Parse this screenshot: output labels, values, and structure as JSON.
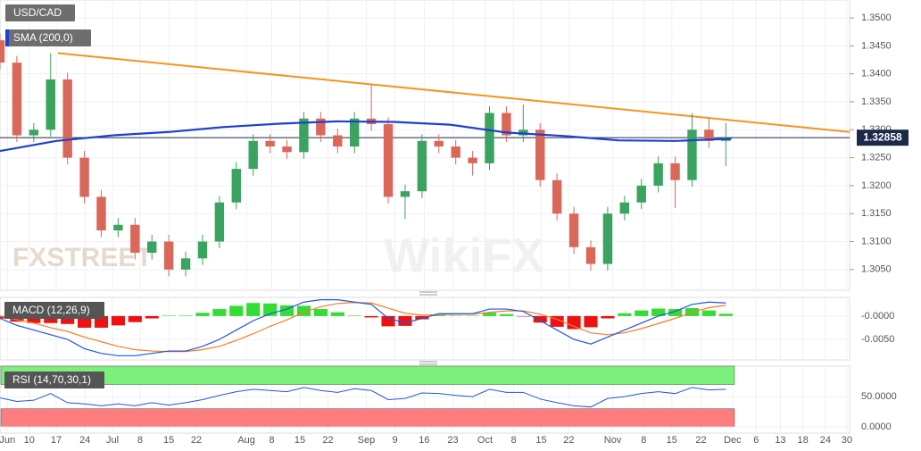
{
  "chart_data": [
    {
      "type": "candlestick",
      "title": "USD/CAD",
      "watermarks": [
        "FXSTREET",
        "WikiFX"
      ],
      "xlim": [
        0,
        151
      ],
      "ylim": [
        1.3013,
        1.3532
      ],
      "yticks": [
        {
          "value": 1.35,
          "label": "1.3500"
        },
        {
          "value": 1.345,
          "label": "1.3450"
        },
        {
          "value": 1.34,
          "label": "1.3400"
        },
        {
          "value": 1.335,
          "label": "1.3350"
        },
        {
          "value": 1.33,
          "label": "1.3300"
        },
        {
          "value": 1.325,
          "label": "1.3250"
        },
        {
          "value": 1.32,
          "label": "1.3200"
        },
        {
          "value": 1.315,
          "label": "1.3150"
        },
        {
          "value": 1.31,
          "label": "1.3100"
        },
        {
          "value": 1.305,
          "label": "1.3050"
        }
      ],
      "x": [
        0,
        3,
        6,
        9,
        12,
        15,
        18,
        21,
        24,
        27,
        30,
        33,
        36,
        39,
        42,
        45,
        48,
        51,
        54,
        57,
        60,
        63,
        66,
        69,
        72,
        75,
        78,
        81,
        84,
        87,
        90,
        93,
        96,
        99,
        102,
        105,
        108,
        111,
        114,
        117,
        120,
        123,
        126,
        129
      ],
      "open": [
        1.346,
        1.342,
        1.329,
        1.33,
        1.339,
        1.325,
        1.318,
        1.312,
        1.313,
        1.308,
        1.31,
        1.305,
        1.307,
        1.31,
        1.317,
        1.323,
        1.328,
        1.327,
        1.326,
        1.332,
        1.329,
        1.327,
        1.332,
        1.331,
        1.318,
        1.319,
        1.328,
        1.327,
        1.325,
        1.324,
        1.333,
        1.329,
        1.33,
        1.321,
        1.315,
        1.309,
        1.306,
        1.315,
        1.317,
        1.32,
        1.324,
        1.321,
        1.33,
        1.328
      ],
      "high": [
        1.3472,
        1.3432,
        1.3312,
        1.3437,
        1.3402,
        1.3262,
        1.3192,
        1.3142,
        1.3142,
        1.3112,
        1.3112,
        1.3082,
        1.3112,
        1.3182,
        1.3242,
        1.3292,
        1.3292,
        1.3282,
        1.3332,
        1.3332,
        1.3302,
        1.3332,
        1.3382,
        1.3322,
        1.3202,
        1.3292,
        1.3292,
        1.3282,
        1.3262,
        1.3342,
        1.3342,
        1.3345,
        1.3312,
        1.3222,
        1.3162,
        1.3102,
        1.3162,
        1.3182,
        1.3212,
        1.3252,
        1.3252,
        1.333,
        1.332,
        1.3312
      ],
      "low": [
        1.3408,
        1.3278,
        1.3278,
        1.3288,
        1.3238,
        1.3168,
        1.3108,
        1.3108,
        1.3068,
        1.3068,
        1.3038,
        1.3038,
        1.3058,
        1.3088,
        1.3158,
        1.3218,
        1.3258,
        1.3248,
        1.3248,
        1.3278,
        1.3258,
        1.3258,
        1.3298,
        1.3168,
        1.314,
        1.3178,
        1.3258,
        1.3238,
        1.3218,
        1.3228,
        1.3278,
        1.3278,
        1.3198,
        1.3138,
        1.3078,
        1.3048,
        1.3048,
        1.3138,
        1.3158,
        1.3188,
        1.316,
        1.3198,
        1.3268,
        1.3235
      ],
      "close": [
        1.342,
        1.329,
        1.33,
        1.339,
        1.325,
        1.318,
        1.312,
        1.313,
        1.308,
        1.31,
        1.305,
        1.307,
        1.31,
        1.317,
        1.323,
        1.328,
        1.327,
        1.326,
        1.332,
        1.329,
        1.327,
        1.332,
        1.331,
        1.318,
        1.319,
        1.328,
        1.327,
        1.325,
        1.324,
        1.333,
        1.329,
        1.33,
        1.321,
        1.315,
        1.309,
        1.306,
        1.315,
        1.317,
        1.32,
        1.324,
        1.321,
        1.33,
        1.328,
        1.3286
      ],
      "up_color": "#3aa35f",
      "down_color": "#d9685a",
      "sma": {
        "name": "SMA (200,0)",
        "color": "#1f3fcf",
        "x": [
          0,
          10,
          20,
          30,
          40,
          50,
          60,
          70,
          80,
          90,
          100,
          110,
          120,
          130
        ],
        "values": [
          1.3262,
          1.328,
          1.329,
          1.3296,
          1.3305,
          1.3311,
          1.3315,
          1.3314,
          1.3309,
          1.3295,
          1.3289,
          1.3281,
          1.328,
          1.3284
        ]
      },
      "trendline": {
        "color": "#f7931e",
        "x": [
          10.3,
          151
        ],
        "values": [
          1.3437,
          1.3296
        ]
      },
      "last_price": {
        "value": 1.32858,
        "label": "1.32858"
      }
    },
    {
      "type": "macd",
      "title": "MACD (12,26,9)",
      "xlim": [
        0,
        151
      ],
      "ylim": [
        -0.0094,
        0.004
      ],
      "yticks": [
        {
          "value": 0,
          "label": "-0.0000"
        },
        {
          "value": -0.005,
          "label": "-0.0050"
        }
      ],
      "x": [
        0,
        3,
        6,
        9,
        12,
        15,
        18,
        21,
        24,
        27,
        30,
        33,
        36,
        39,
        42,
        45,
        48,
        51,
        54,
        57,
        60,
        63,
        66,
        69,
        72,
        75,
        78,
        81,
        84,
        87,
        90,
        93,
        96,
        99,
        102,
        105,
        108,
        111,
        114,
        117,
        120,
        123,
        126,
        129
      ],
      "macd": {
        "color": "#2255dd",
        "values": [
          -0.0005,
          -0.002,
          -0.003,
          -0.004,
          -0.005,
          -0.007,
          -0.008,
          -0.0085,
          -0.0085,
          -0.008,
          -0.0075,
          -0.0075,
          -0.0065,
          -0.005,
          -0.003,
          -0.001,
          0.0005,
          0.0015,
          0.003,
          0.0035,
          0.0035,
          0.003,
          0.0025,
          -0.0005,
          -0.0015,
          -0.0005,
          0.0005,
          0.0005,
          0.0005,
          0.0015,
          0.0015,
          0.001,
          -0.001,
          -0.003,
          -0.005,
          -0.006,
          -0.0045,
          -0.003,
          -0.0015,
          0,
          0.001,
          0.0025,
          0.003,
          0.0028
        ]
      },
      "signal": {
        "color": "#f07f2a",
        "values": [
          0,
          -0.0008,
          -0.0015,
          -0.0025,
          -0.0033,
          -0.0045,
          -0.0055,
          -0.0065,
          -0.0072,
          -0.0075,
          -0.0076,
          -0.0076,
          -0.0072,
          -0.0065,
          -0.0052,
          -0.0038,
          -0.0022,
          -0.0008,
          0.0008,
          0.002,
          0.0027,
          0.0029,
          0.0028,
          0.0017,
          0.0006,
          0.0002,
          0.0003,
          0.0004,
          0.0004,
          0.0008,
          0.0011,
          0.0011,
          0.0004,
          -0.0007,
          -0.0022,
          -0.0036,
          -0.004,
          -0.0036,
          -0.0027,
          -0.0016,
          -0.0005,
          0.0008,
          0.0018,
          0.0023
        ]
      },
      "histogram": {
        "up_color": "#33dd33",
        "down_color": "#ee1111",
        "values": [
          -0.0005,
          -0.0012,
          -0.0015,
          -0.0015,
          -0.0017,
          -0.0025,
          -0.0025,
          -0.002,
          -0.0013,
          -0.0005,
          0.0001,
          0.0001,
          0.0007,
          0.0015,
          0.0022,
          0.0028,
          0.0027,
          0.0023,
          0.0022,
          0.0015,
          0.0008,
          0.0001,
          -0.0003,
          -0.0022,
          -0.0021,
          -0.0007,
          0.0002,
          0.0001,
          0.0001,
          0.0007,
          0.0004,
          -0.0001,
          -0.0014,
          -0.0023,
          -0.0028,
          -0.0024,
          -0.0005,
          0.0006,
          0.0012,
          0.0016,
          0.0015,
          0.0017,
          0.0012,
          0.0005
        ]
      }
    },
    {
      "type": "rsi",
      "title": "RSI (14,70,30,1)",
      "xlim": [
        0,
        151
      ],
      "ylim": [
        -10,
        100
      ],
      "yticks": [
        {
          "value": 50,
          "label": "50.0000"
        },
        {
          "value": 0,
          "label": "0.0000"
        }
      ],
      "bands": [
        {
          "from": 70,
          "to": 100,
          "color": "#7cf07c"
        },
        {
          "from": 0,
          "to": 30,
          "color": "#fb7d7d"
        }
      ],
      "color": "#2255dd",
      "x": [
        0,
        3,
        6,
        9,
        12,
        15,
        18,
        21,
        24,
        27,
        30,
        33,
        36,
        39,
        42,
        45,
        48,
        51,
        54,
        57,
        60,
        63,
        66,
        69,
        72,
        75,
        78,
        81,
        84,
        87,
        90,
        93,
        96,
        99,
        102,
        105,
        108,
        111,
        114,
        117,
        120,
        123,
        126,
        129
      ],
      "values": [
        48,
        42,
        44,
        55,
        40,
        38,
        35,
        38,
        35,
        40,
        36,
        40,
        45,
        52,
        58,
        62,
        60,
        58,
        65,
        60,
        57,
        63,
        60,
        45,
        47,
        56,
        55,
        52,
        50,
        62,
        57,
        57,
        46,
        40,
        35,
        33,
        47,
        50,
        55,
        58,
        55,
        65,
        61,
        62
      ],
      "xticks": [
        {
          "value": 1.3,
          "label": "Jun"
        },
        {
          "value": 5.2,
          "label": "10"
        },
        {
          "value": 10,
          "label": "17"
        },
        {
          "value": 15.1,
          "label": "24"
        },
        {
          "value": 20,
          "label": "Jul"
        },
        {
          "value": 24.9,
          "label": "8"
        },
        {
          "value": 30,
          "label": "15"
        },
        {
          "value": 34.9,
          "label": "22"
        },
        {
          "value": 43.8,
          "label": "Aug"
        },
        {
          "value": 48.3,
          "label": "8"
        },
        {
          "value": 53.3,
          "label": "15"
        },
        {
          "value": 58.3,
          "label": "22"
        },
        {
          "value": 65.1,
          "label": "Sep"
        },
        {
          "value": 70.2,
          "label": "9"
        },
        {
          "value": 75.4,
          "label": "16"
        },
        {
          "value": 80.5,
          "label": "23"
        },
        {
          "value": 86.2,
          "label": "Oct"
        },
        {
          "value": 91.3,
          "label": "8"
        },
        {
          "value": 96.2,
          "label": "15"
        },
        {
          "value": 101.1,
          "label": "22"
        },
        {
          "value": 108.9,
          "label": "Nov"
        },
        {
          "value": 114.4,
          "label": "8"
        },
        {
          "value": 119.4,
          "label": "15"
        },
        {
          "value": 124.6,
          "label": "22"
        },
        {
          "value": 130.2,
          "label": "Dec"
        },
        {
          "value": 134.4,
          "label": "6"
        },
        {
          "value": 138.7,
          "label": "13"
        },
        {
          "value": 142.7,
          "label": "18"
        },
        {
          "value": 146.7,
          "label": "24"
        },
        {
          "value": 150.5,
          "label": "30"
        }
      ]
    }
  ]
}
